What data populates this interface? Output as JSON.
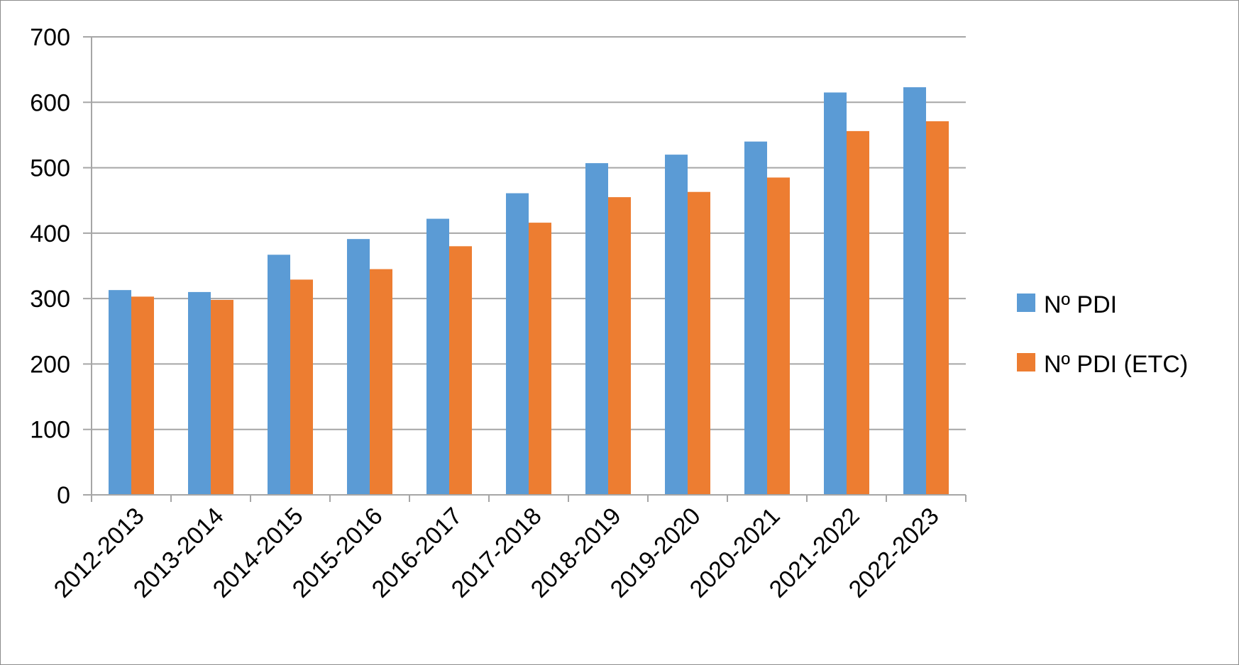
{
  "chart_data": {
    "type": "bar",
    "title": "",
    "xlabel": "",
    "ylabel": "",
    "ylim": [
      0,
      700
    ],
    "yticks": [
      0,
      100,
      200,
      300,
      400,
      500,
      600,
      700
    ],
    "grid": true,
    "legend_position": "right",
    "categories": [
      "2012-2013",
      "2013-2014",
      "2014-2015",
      "2015-2016",
      "2016-2017",
      "2017-2018",
      "2018-2019",
      "2019-2020",
      "2020-2021",
      "2021-2022",
      "2022-2023"
    ],
    "series": [
      {
        "name": "Nº PDI",
        "color": "#5b9bd5",
        "values": [
          313,
          310,
          367,
          391,
          422,
          461,
          507,
          520,
          540,
          615,
          623
        ]
      },
      {
        "name": "Nº PDI (ETC)",
        "color": "#ed7d31",
        "values": [
          303,
          298,
          329,
          345,
          380,
          416,
          455,
          463,
          485,
          556,
          571
        ]
      }
    ]
  }
}
